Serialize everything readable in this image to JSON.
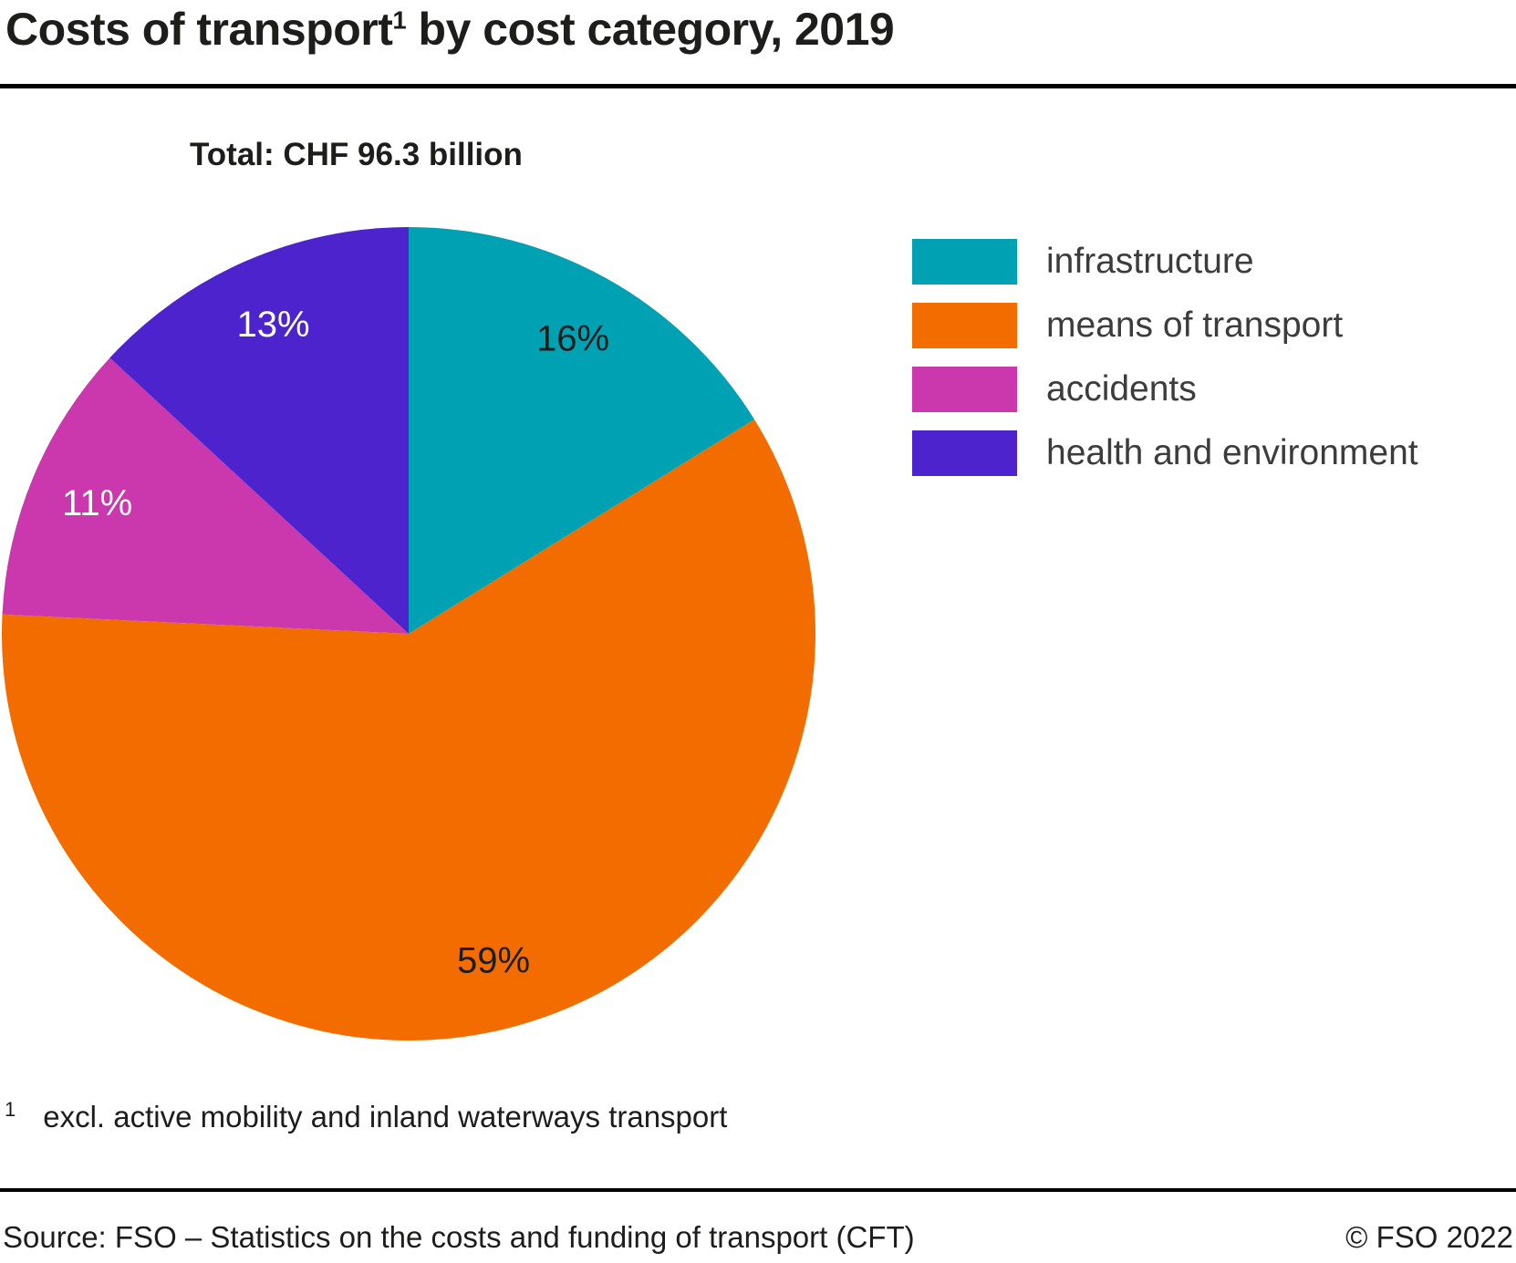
{
  "header": {
    "title_part1": "Costs of transport",
    "title_sup": "1",
    "title_part2": " by cost category, 2019"
  },
  "chart_data": {
    "type": "pie",
    "title": "Total: CHF 96.3 billion",
    "unit": "percent of total costs",
    "start_angle_deg": 0,
    "direction": "clockwise",
    "legend_position": "right",
    "label_radius_fraction": 0.83,
    "segments": [
      {
        "label": "infrastructure",
        "value": 16,
        "display": "16%",
        "color": "#00a1b3",
        "label_color": "#1d1d1b"
      },
      {
        "label": "means of transport",
        "value": 59,
        "display": "59%",
        "color": "#f36c00",
        "label_color": "#1d1d1b"
      },
      {
        "label": "accidents",
        "value": 11,
        "display": "11%",
        "color": "#cb38ae",
        "label_color": "#ffffff"
      },
      {
        "label": "health and environment",
        "value": 13,
        "display": "13%",
        "color": "#4c23cd",
        "label_color": "#ffffff"
      }
    ]
  },
  "footnote": {
    "marker": "1",
    "text": "excl. active mobility and inland waterways transport"
  },
  "footer": {
    "source": "Source: FSO – Statistics on the costs and funding of transport (CFT)",
    "copyright": "© FSO 2022"
  }
}
